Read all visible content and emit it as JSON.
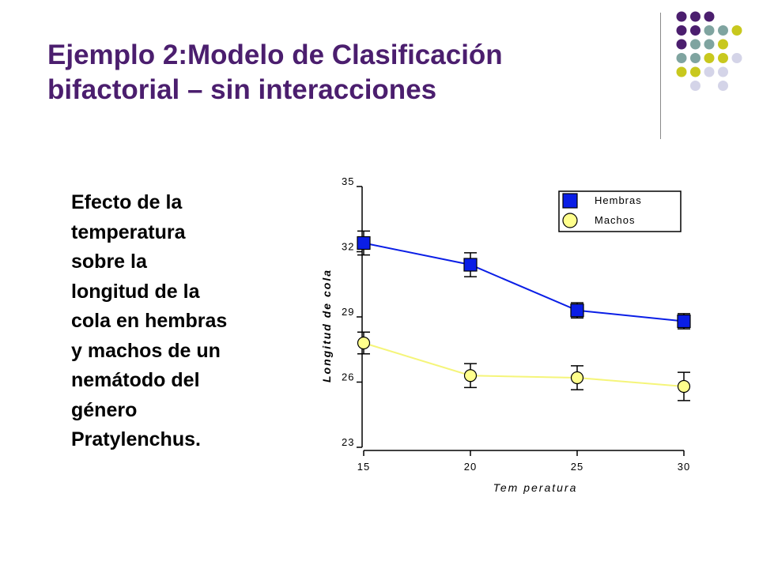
{
  "slide": {
    "title_lines": [
      "Ejemplo 2:Modelo de Clasificación",
      "bifactorial – sin interacciones"
    ],
    "description_lines": [
      "Efecto de la",
      "temperatura",
      "sobre la",
      "longitud de la",
      "cola en hembras",
      "y machos de un",
      "nemátodo del",
      "género",
      "Pratylenchus."
    ]
  },
  "colors": {
    "title": "#4b1e6e",
    "hembras": "#0a1ee6",
    "machos": "#ffff8c",
    "machos_line": "#f5f57a",
    "deco_purple": "#4b1e6e",
    "deco_teal": "#7fa4a0",
    "deco_olive": "#c8c81e",
    "deco_lavender": "#d4d4e8"
  },
  "decoration": {
    "dot_rows": [
      [
        "purple",
        "purple",
        "purple",
        "",
        ""
      ],
      [
        "purple",
        "purple",
        "teal",
        "teal",
        "olive"
      ],
      [
        "purple",
        "teal",
        "teal",
        "olive",
        ""
      ],
      [
        "teal",
        "teal",
        "olive",
        "olive",
        "lavender"
      ],
      [
        "olive",
        "olive",
        "lavender",
        "lavender",
        ""
      ],
      [
        "",
        "lavender",
        "",
        "lavender",
        ""
      ]
    ]
  },
  "chart_data": {
    "type": "line",
    "x": [
      15,
      20,
      25,
      30
    ],
    "xlabel": "Tem peratura",
    "ylabel": "Longitud de cola",
    "xlim": [
      15,
      30
    ],
    "ylim": [
      23,
      35
    ],
    "xticks": [
      "15",
      "20",
      "25",
      "30"
    ],
    "yticks": [
      "35",
      "32",
      "29",
      "26",
      "23"
    ],
    "grid": false,
    "legend_position": "top-right",
    "error_bars": true,
    "series": [
      {
        "name": "Hembras",
        "marker": "square",
        "values": [
          32.4,
          31.4,
          29.3,
          28.8
        ],
        "error": [
          0.55,
          0.55,
          0.35,
          0.35
        ]
      },
      {
        "name": "Machos",
        "marker": "circle",
        "values": [
          27.8,
          26.3,
          26.2,
          25.8
        ],
        "error": [
          0.5,
          0.55,
          0.55,
          0.65
        ]
      }
    ]
  }
}
